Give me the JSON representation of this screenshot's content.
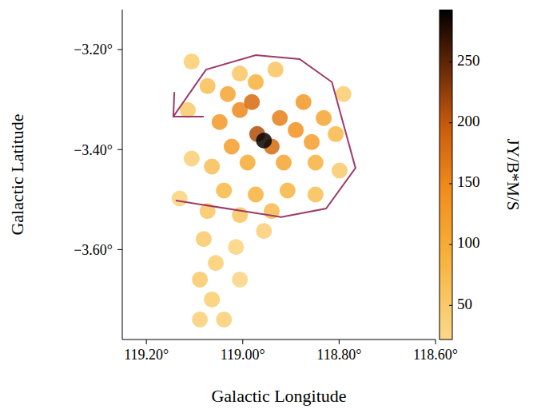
{
  "chart_data": {
    "type": "scatter",
    "x_label": "Galactic Longitude",
    "y_label": "Galactic Latitude",
    "xlim": [
      119.25,
      118.6
    ],
    "ylim": [
      -3.78,
      -3.12
    ],
    "xticks": [
      {
        "value": 119.2,
        "label": "119.20°"
      },
      {
        "value": 119.0,
        "label": "119.00°"
      },
      {
        "value": 118.8,
        "label": "118.80°"
      },
      {
        "value": 118.6,
        "label": "118.60°"
      }
    ],
    "yticks": [
      {
        "value": -3.6,
        "label": "−3.60°"
      },
      {
        "value": -3.4,
        "label": "−3.40°"
      },
      {
        "value": -3.2,
        "label": "−3.20°"
      }
    ],
    "emission": {
      "l": [
        119.106,
        119.114,
        119.106,
        119.131,
        119.089,
        119.064,
        119.081,
        119.056,
        119.089,
        119.014,
        119.006,
        118.956,
        119.039,
        119.073,
        119.006,
        118.94,
        118.849,
        118.799,
        118.791,
        118.932,
        119.006,
        119.073,
        119.064,
        119.039,
        118.973,
        118.907,
        118.807,
        118.849,
        118.99,
        118.915,
        118.973,
        118.832,
        119.031,
        119.023,
        118.857,
        118.874,
        119.048,
        118.89,
        119.006,
        118.923,
        118.981,
        118.94,
        118.97,
        118.956
      ],
      "b": [
        -3.224,
        -3.321,
        -3.418,
        -3.498,
        -3.66,
        -3.7,
        -3.579,
        -3.627,
        -3.74,
        -3.595,
        -3.66,
        -3.563,
        -3.74,
        -3.523,
        -3.531,
        -3.523,
        -3.49,
        -3.442,
        -3.289,
        -3.24,
        -3.248,
        -3.273,
        -3.434,
        -3.482,
        -3.49,
        -3.482,
        -3.369,
        -3.426,
        -3.426,
        -3.426,
        -3.265,
        -3.337,
        -3.289,
        -3.394,
        -3.385,
        -3.305,
        -3.345,
        -3.361,
        -3.321,
        -3.337,
        -3.305,
        -3.394,
        -3.369,
        -3.382
      ],
      "values": [
        45,
        50,
        40,
        35,
        50,
        45,
        50,
        45,
        40,
        35,
        30,
        40,
        40,
        55,
        60,
        75,
        70,
        50,
        45,
        60,
        55,
        70,
        70,
        80,
        90,
        85,
        80,
        90,
        100,
        110,
        90,
        110,
        110,
        120,
        120,
        130,
        130,
        140,
        150,
        160,
        180,
        180,
        210,
        290
      ]
    },
    "colorbar": {
      "label": "JY/B*M/S",
      "range": [
        22,
        293
      ],
      "ticks": [
        50,
        100,
        150,
        200,
        250
      ]
    },
    "path": {
      "color": "#9e3a6a",
      "line_style": "solid",
      "l": [
        119.139,
        118.92,
        118.827,
        118.766,
        118.815,
        118.882,
        118.973,
        119.076,
        119.144
      ],
      "b": [
        -3.502,
        -3.535,
        -3.518,
        -3.437,
        -3.265,
        -3.219,
        -3.211,
        -3.24,
        -3.334
      ]
    },
    "arrowhead": {
      "l": [
        119.142,
        119.144,
        119.081
      ],
      "b": [
        -3.285,
        -3.334,
        -3.334
      ]
    }
  }
}
